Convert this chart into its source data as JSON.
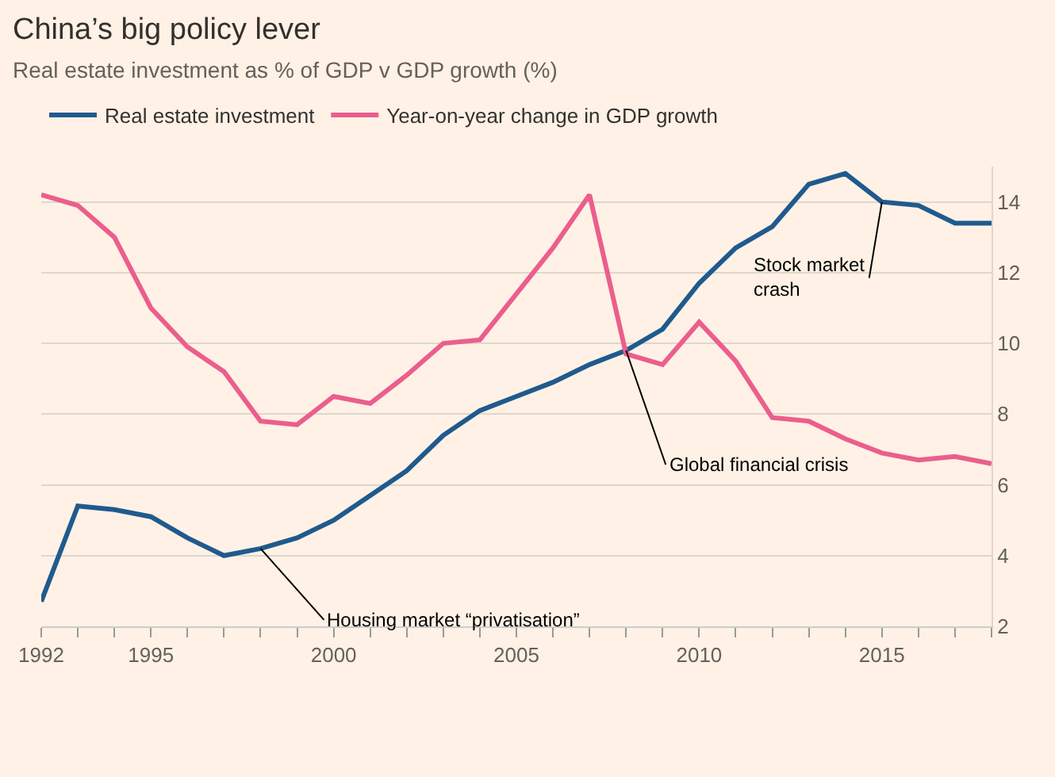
{
  "chart_data": {
    "type": "line",
    "title": "China’s big policy lever",
    "subtitle": "Real estate investment as % of GDP v GDP growth (%)",
    "x": [
      1992,
      1993,
      1994,
      1995,
      1996,
      1997,
      1998,
      1999,
      2000,
      2001,
      2002,
      2003,
      2004,
      2005,
      2006,
      2007,
      2008,
      2009,
      2010,
      2011,
      2012,
      2013,
      2014,
      2015,
      2016,
      2017,
      2018
    ],
    "series": [
      {
        "name": "Real estate investment",
        "color": "#1f5a8e",
        "values": [
          2.7,
          5.4,
          5.3,
          5.1,
          4.5,
          4.0,
          4.2,
          4.5,
          5.0,
          5.7,
          6.4,
          7.4,
          8.1,
          8.5,
          8.9,
          9.4,
          9.8,
          10.4,
          11.7,
          12.7,
          13.3,
          14.5,
          14.8,
          14.0,
          13.9,
          13.4,
          13.4
        ]
      },
      {
        "name": "Year-on-year change in GDP growth",
        "color": "#eb5e8d",
        "values": [
          14.2,
          13.9,
          13.0,
          11.0,
          9.9,
          9.2,
          7.8,
          7.7,
          8.5,
          8.3,
          9.1,
          10.0,
          10.1,
          11.4,
          12.7,
          14.2,
          9.7,
          9.4,
          10.6,
          9.5,
          7.9,
          7.8,
          7.3,
          6.9,
          6.7,
          6.8,
          6.6
        ]
      }
    ],
    "xlim": [
      1992,
      2018
    ],
    "xticks": [
      1992,
      {
        "value": 1993,
        "label": null
      },
      {
        "value": 1994,
        "label": null
      },
      1995,
      {
        "value": 1996,
        "label": null
      },
      {
        "value": 1997,
        "label": null
      },
      {
        "value": 1998,
        "label": null
      },
      {
        "value": 1999,
        "label": null
      },
      2000,
      {
        "value": 2001,
        "label": null
      },
      {
        "value": 2002,
        "label": null
      },
      {
        "value": 2003,
        "label": null
      },
      {
        "value": 2004,
        "label": null
      },
      2005,
      {
        "value": 2006,
        "label": null
      },
      {
        "value": 2007,
        "label": null
      },
      {
        "value": 2008,
        "label": null
      },
      {
        "value": 2009,
        "label": null
      },
      2010,
      {
        "value": 2011,
        "label": null
      },
      {
        "value": 2012,
        "label": null
      },
      {
        "value": 2013,
        "label": null
      },
      {
        "value": 2014,
        "label": null
      },
      2015,
      {
        "value": 2016,
        "label": null
      },
      {
        "value": 2017,
        "label": null
      },
      {
        "value": 2018,
        "label": null
      }
    ],
    "ylim": [
      2,
      15
    ],
    "yticks": [
      2,
      4,
      6,
      8,
      10,
      12,
      14
    ],
    "grid": "y",
    "legend": "top left",
    "marker": "none",
    "line_style": "solid",
    "annotations": [
      {
        "text": "Housing market “privatisation”",
        "x": 1998,
        "y": 4.2
      },
      {
        "text": "Global financial crisis",
        "x": 2008,
        "y": 9.8
      },
      {
        "text": "Stock market\ncrash",
        "x": 2015,
        "y": 14.0
      }
    ]
  }
}
